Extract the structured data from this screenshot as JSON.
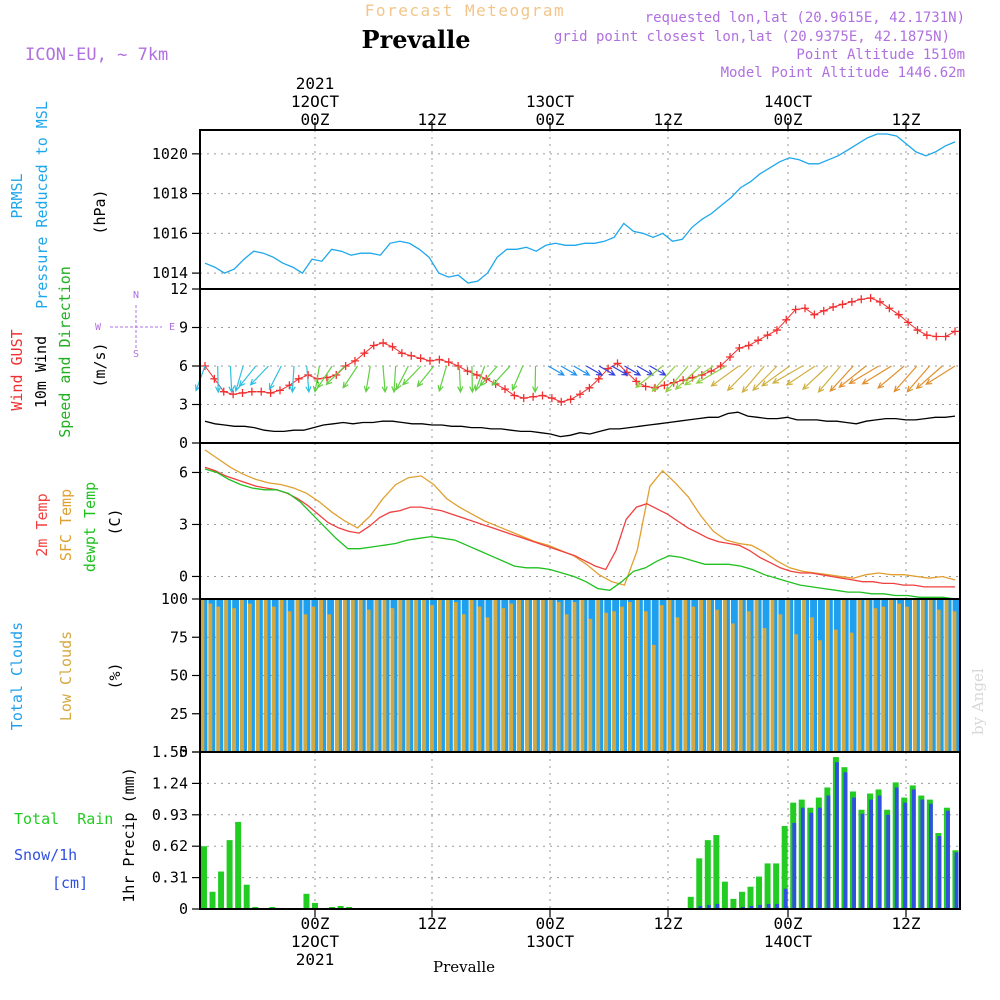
{
  "header": {
    "title": "Forecast Meteogram",
    "location": "Prevalle",
    "model": "ICON-EU, ~ 7km",
    "requested": "requested lon,lat (20.9615E, 42.1731N)",
    "gridpoint": "grid point closest lon,lat (20.9375E, 42.1875N)",
    "point_alt": "Point Altitude 1510m",
    "model_alt": "Model Point Altitude 1446.62m",
    "credit": "by Angel",
    "footer_location": "Prevalle"
  },
  "colors": {
    "pressure": "#1ea7ec",
    "gust": "#f03030",
    "wind": "#000000",
    "temp2m": "#f04040",
    "sfc": "#e0a030",
    "dewpt": "#20c020",
    "total_clouds": "#1ea0ee",
    "low_clouds": "#d4a840",
    "rain": "#22cc22",
    "snow": "#3050e0",
    "purple": "#b070e0",
    "title_orange": "#f2c58a"
  },
  "time_axis": {
    "top": [
      {
        "line1": "2021",
        "line2": "12OCT",
        "line3": "00Z"
      },
      {
        "line1": "",
        "line2": "",
        "line3": "12Z"
      },
      {
        "line1": "",
        "line2": "13OCT",
        "line3": "00Z"
      },
      {
        "line1": "",
        "line2": "",
        "line3": "12Z"
      },
      {
        "line1": "",
        "line2": "14OCT",
        "line3": "00Z"
      },
      {
        "line1": "",
        "line2": "",
        "line3": "12Z"
      }
    ],
    "bottom": [
      {
        "line1": "00Z",
        "line2": "12OCT",
        "line3": "2021"
      },
      {
        "line1": "12Z",
        "line2": "",
        "line3": ""
      },
      {
        "line1": "00Z",
        "line2": "13OCT",
        "line3": ""
      },
      {
        "line1": "12Z",
        "line2": "",
        "line3": ""
      },
      {
        "line1": "00Z",
        "line2": "14OCT",
        "line3": ""
      },
      {
        "line1": "12Z",
        "line2": "",
        "line3": ""
      }
    ]
  },
  "panels": {
    "pressure": {
      "label1": "PRMSL",
      "label2": "Pressure Reduced to MSL",
      "unit": "(hPa)"
    },
    "wind": {
      "label_gust": "Wind GUST",
      "label_wind": "10m Wind",
      "label_dir": "Speed and Direction",
      "unit": "(m/s)",
      "compass_n": "N",
      "compass_s": "S",
      "compass_w": "W",
      "compass_e": "E"
    },
    "temp": {
      "label_2m": "2m Temp",
      "label_sfc": "SFC Temp",
      "label_dew": "dewpt Temp",
      "unit": "(C)"
    },
    "clouds": {
      "label_total": "Total Clouds",
      "label_low": "Low Clouds",
      "unit": "(%)"
    },
    "precip": {
      "label_rain": "Total  Rain",
      "label_snow": "Snow/1h",
      "label_cm": "[cm]",
      "unit": "1hr Precip (mm)"
    }
  },
  "chart_data": [
    {
      "type": "line",
      "title": "PRMSL Pressure Reduced to MSL",
      "ylabel": "(hPa)",
      "x_start_hour": -9,
      "x_end_hour": 55,
      "ylim": [
        1013.2,
        1021.2
      ],
      "y_ticks": [
        "1014",
        "1016",
        "1018",
        "1020"
      ],
      "series": [
        {
          "name": "PRMSL",
          "values": [
            1014.5,
            1014.3,
            1014.0,
            1014.2,
            1014.7,
            1015.1,
            1015.0,
            1014.8,
            1014.5,
            1014.3,
            1014.0,
            1014.7,
            1014.6,
            1015.2,
            1015.1,
            1014.9,
            1015.0,
            1015.0,
            1014.9,
            1015.5,
            1015.6,
            1015.5,
            1015.2,
            1014.8,
            1014.0,
            1013.8,
            1013.9,
            1013.5,
            1013.6,
            1014.0,
            1014.8,
            1015.2,
            1015.2,
            1015.3,
            1015.1,
            1015.4,
            1015.5,
            1015.4,
            1015.4,
            1015.5,
            1015.5,
            1015.6,
            1015.8,
            1016.5,
            1016.1,
            1016.0,
            1015.8,
            1016.0,
            1015.6,
            1015.7,
            1016.3,
            1016.7,
            1017.0,
            1017.4,
            1017.8,
            1018.3,
            1018.6,
            1019.0,
            1019.3,
            1019.6,
            1019.8,
            1019.7,
            1019.5,
            1019.5,
            1019.7,
            1019.9,
            1020.2,
            1020.5,
            1020.8,
            1021.0,
            1021.0,
            1020.9,
            1020.5,
            1020.1,
            1019.9,
            1020.1,
            1020.4,
            1020.6
          ]
        }
      ]
    },
    {
      "type": "line",
      "title": "Wind GUST / 10m Wind Speed and Direction",
      "ylabel": "(m/s)",
      "ylim": [
        0,
        12
      ],
      "y_ticks": [
        "0",
        "3",
        "6",
        "9",
        "12"
      ],
      "series": [
        {
          "name": "Wind GUST",
          "values": [
            6.0,
            5.0,
            4.0,
            3.8,
            3.9,
            4.0,
            4.0,
            3.9,
            4.1,
            4.5,
            5.0,
            5.3,
            5.0,
            5.1,
            5.3,
            6.0,
            6.4,
            7.0,
            7.6,
            7.8,
            7.5,
            7.0,
            6.8,
            6.6,
            6.4,
            6.5,
            6.3,
            6.0,
            5.6,
            5.3,
            5.0,
            4.6,
            4.2,
            3.7,
            3.5,
            3.6,
            3.7,
            3.5,
            3.2,
            3.4,
            3.8,
            4.3,
            5.0,
            5.8,
            6.2,
            5.5,
            4.8,
            4.4,
            4.3,
            4.5,
            4.7,
            4.9,
            5.1,
            5.3,
            5.6,
            6.0,
            6.7,
            7.4,
            7.6,
            8.0,
            8.4,
            8.8,
            9.6,
            10.4,
            10.5,
            10.0,
            10.3,
            10.6,
            10.8,
            11.0,
            11.2,
            11.3,
            11.0,
            10.5,
            10.0,
            9.4,
            8.8,
            8.4,
            8.3,
            8.3,
            8.7
          ]
        },
        {
          "name": "10m Wind",
          "values": [
            1.7,
            1.5,
            1.4,
            1.3,
            1.3,
            1.2,
            1.0,
            0.9,
            0.9,
            1.0,
            1.0,
            1.2,
            1.4,
            1.5,
            1.6,
            1.5,
            1.6,
            1.6,
            1.7,
            1.7,
            1.6,
            1.5,
            1.5,
            1.4,
            1.4,
            1.3,
            1.3,
            1.2,
            1.2,
            1.1,
            1.1,
            1.0,
            0.9,
            0.9,
            0.8,
            0.7,
            0.5,
            0.6,
            0.8,
            0.7,
            0.9,
            1.1,
            1.1,
            1.2,
            1.3,
            1.4,
            1.5,
            1.6,
            1.7,
            1.8,
            1.9,
            2.0,
            2.0,
            2.3,
            2.4,
            2.1,
            2.0,
            1.9,
            1.9,
            2.0,
            1.8,
            1.8,
            1.8,
            1.7,
            1.7,
            1.6,
            1.5,
            1.7,
            1.8,
            1.9,
            1.9,
            1.8,
            1.8,
            1.9,
            2.0,
            2.0,
            2.1
          ]
        }
      ]
    },
    {
      "type": "line",
      "title": "2m Temp / SFC Temp / dewpt Temp",
      "ylabel": "(C)",
      "ylim": [
        -1.3,
        7.7
      ],
      "y_ticks": [
        "0",
        "3",
        "6"
      ],
      "series": [
        {
          "name": "2m Temp",
          "values": [
            6.3,
            6.1,
            5.8,
            5.6,
            5.4,
            5.2,
            5.1,
            5.0,
            4.8,
            4.5,
            4.1,
            3.6,
            3.1,
            2.8,
            2.6,
            2.5,
            2.9,
            3.4,
            3.7,
            3.8,
            4.0,
            4.0,
            3.9,
            3.8,
            3.6,
            3.4,
            3.2,
            3.0,
            2.8,
            2.6,
            2.4,
            2.2,
            2.0,
            1.8,
            1.6,
            1.4,
            1.2,
            0.9,
            0.6,
            0.4,
            1.5,
            3.3,
            4.0,
            4.2,
            3.9,
            3.6,
            3.2,
            2.8,
            2.5,
            2.2,
            2.0,
            1.9,
            1.8,
            1.5,
            1.1,
            0.8,
            0.5,
            0.3,
            0.2,
            0.2,
            0.1,
            0.0,
            -0.1,
            -0.2,
            -0.3,
            -0.3,
            -0.4,
            -0.4,
            -0.5,
            -0.5,
            -0.6,
            -0.6,
            -0.6,
            -0.6
          ]
        },
        {
          "name": "SFC Temp",
          "values": [
            7.3,
            6.8,
            6.3,
            5.9,
            5.6,
            5.4,
            5.3,
            5.1,
            4.8,
            4.3,
            3.7,
            3.2,
            2.8,
            3.5,
            4.5,
            5.3,
            5.7,
            5.8,
            5.3,
            4.5,
            4.0,
            3.6,
            3.2,
            2.9,
            2.6,
            2.3,
            2.0,
            1.8,
            1.5,
            1.2,
            0.7,
            0.1,
            -0.3,
            -0.5,
            1.5,
            5.2,
            6.1,
            5.4,
            4.6,
            3.5,
            2.6,
            2.1,
            1.9,
            1.8,
            1.4,
            0.9,
            0.5,
            0.3,
            0.2,
            0.1,
            0.0,
            -0.1,
            0.1,
            0.2,
            0.1,
            0.1,
            0.0,
            -0.1,
            0.0,
            -0.2
          ]
        },
        {
          "name": "dewpt Temp",
          "values": [
            6.2,
            6.0,
            5.6,
            5.3,
            5.1,
            5.0,
            5.0,
            4.8,
            4.3,
            3.6,
            2.9,
            2.2,
            1.6,
            1.6,
            1.7,
            1.8,
            1.9,
            2.1,
            2.2,
            2.3,
            2.2,
            2.1,
            1.8,
            1.5,
            1.2,
            0.9,
            0.6,
            0.5,
            0.5,
            0.4,
            0.2,
            0.0,
            -0.3,
            -0.7,
            -0.8,
            -0.3,
            0.3,
            0.5,
            0.9,
            1.2,
            1.1,
            0.9,
            0.7,
            0.7,
            0.7,
            0.6,
            0.4,
            0.1,
            -0.1,
            -0.3,
            -0.5,
            -0.6,
            -0.7,
            -0.8,
            -0.9,
            -0.9,
            -1.0,
            -1.0,
            -1.1,
            -1.1,
            -1.2,
            -1.2,
            -1.2,
            -1.3
          ]
        }
      ]
    },
    {
      "type": "bar",
      "title": "Total Clouds / Low Clouds",
      "ylabel": "(%)",
      "ylim": [
        0,
        100
      ],
      "y_ticks": [
        "0",
        "25",
        "50",
        "75",
        "100"
      ],
      "series": [
        {
          "name": "Total Clouds",
          "values": [
            100,
            100,
            100,
            100,
            100,
            100,
            100,
            100,
            100,
            100,
            100,
            100,
            100,
            100,
            100,
            100,
            100,
            100,
            100,
            100,
            100,
            100,
            100,
            100,
            100,
            100,
            100,
            100,
            100,
            100,
            100,
            100,
            100,
            100,
            100,
            100,
            100,
            100,
            100,
            100,
            100,
            100,
            100,
            100,
            100,
            100,
            100,
            100,
            100,
            100,
            100,
            100,
            100,
            100,
            100,
            100,
            100,
            100,
            100,
            100,
            100,
            100,
            100,
            100,
            100,
            100,
            100,
            100,
            100,
            100,
            100,
            100,
            100,
            100,
            100,
            100,
            100,
            100,
            100,
            100,
            100,
            100,
            100,
            100,
            100,
            100,
            100,
            100,
            100,
            100,
            100,
            100,
            100,
            100,
            100,
            100
          ]
        },
        {
          "name": "Low Clouds",
          "values": [
            100,
            97,
            95,
            100,
            94,
            100,
            97,
            100,
            100,
            95,
            100,
            92,
            100,
            90,
            95,
            100,
            90,
            100,
            100,
            100,
            100,
            93,
            100,
            100,
            94,
            100,
            100,
            100,
            100,
            96,
            100,
            100,
            98,
            90,
            100,
            95,
            88,
            100,
            94,
            97,
            100,
            100,
            100,
            100,
            100,
            98,
            90,
            98,
            100,
            87,
            100,
            91,
            92,
            95,
            98,
            100,
            92,
            70,
            96,
            100,
            88,
            100,
            95,
            100,
            100,
            93,
            100,
            84,
            100,
            92,
            100,
            81,
            100,
            90,
            100,
            77,
            100,
            88,
            73,
            100,
            80,
            100,
            78,
            100,
            100,
            94,
            95,
            100,
            97,
            95,
            100,
            100,
            100,
            93,
            100,
            92
          ]
        }
      ]
    },
    {
      "type": "bar",
      "title": "Total Rain / Snow 1h",
      "ylabel": "1hr Precip (mm)",
      "ylim": [
        0,
        1.55
      ],
      "y_ticks": [
        "0",
        "0.31",
        "0.62",
        "0.93",
        "1.24",
        "1.55"
      ],
      "series": [
        {
          "name": "Total Rain",
          "values": [
            0.62,
            0.17,
            0.37,
            0.68,
            0.86,
            0.24,
            0.02,
            0.01,
            0.02,
            0.01,
            0.0,
            0.0,
            0.15,
            0.06,
            0.01,
            0.02,
            0.03,
            0.02,
            0.01,
            0.0,
            0.0,
            0.0,
            0.0,
            0.0,
            0.0,
            0.0,
            0.0,
            0.0,
            0.0,
            0.0,
            0.0,
            0.0,
            0.0,
            0.0,
            0.0,
            0.0,
            0.0,
            0.0,
            0.0,
            0.0,
            0.0,
            0.0,
            0.0,
            0.0,
            0.0,
            0.0,
            0.0,
            0.0,
            0.0,
            0.0,
            0.0,
            0.0,
            0.0,
            0.0,
            0.0,
            0.0,
            0.0,
            0.12,
            0.5,
            0.68,
            0.73,
            0.27,
            0.1,
            0.17,
            0.22,
            0.32,
            0.45,
            0.45,
            0.82,
            1.05,
            1.08,
            1.0,
            1.1,
            1.2,
            1.5,
            1.4,
            1.16,
            0.98,
            1.14,
            1.18,
            0.98,
            1.25,
            1.1,
            1.22,
            1.12,
            1.08,
            0.75,
            1.0,
            0.58
          ]
        },
        {
          "name": "Snow/1h",
          "values": [
            0,
            0,
            0,
            0,
            0,
            0,
            0,
            0,
            0,
            0,
            0,
            0,
            0,
            0,
            0,
            0,
            0,
            0,
            0,
            0,
            0,
            0,
            0,
            0,
            0,
            0,
            0,
            0,
            0,
            0,
            0,
            0,
            0,
            0,
            0,
            0,
            0,
            0,
            0,
            0,
            0,
            0,
            0,
            0,
            0,
            0,
            0,
            0,
            0,
            0,
            0,
            0,
            0,
            0,
            0,
            0,
            0,
            0,
            0.03,
            0.04,
            0.05,
            0.0,
            0.0,
            0.02,
            0.03,
            0.04,
            0.05,
            0.05,
            0.2,
            0.85,
            1.0,
            0.95,
            1.0,
            1.12,
            1.45,
            1.35,
            1.1,
            0.94,
            1.08,
            1.12,
            0.93,
            1.2,
            1.05,
            1.18,
            1.08,
            1.04,
            0.72,
            0.97,
            0.56
          ]
        }
      ]
    }
  ]
}
